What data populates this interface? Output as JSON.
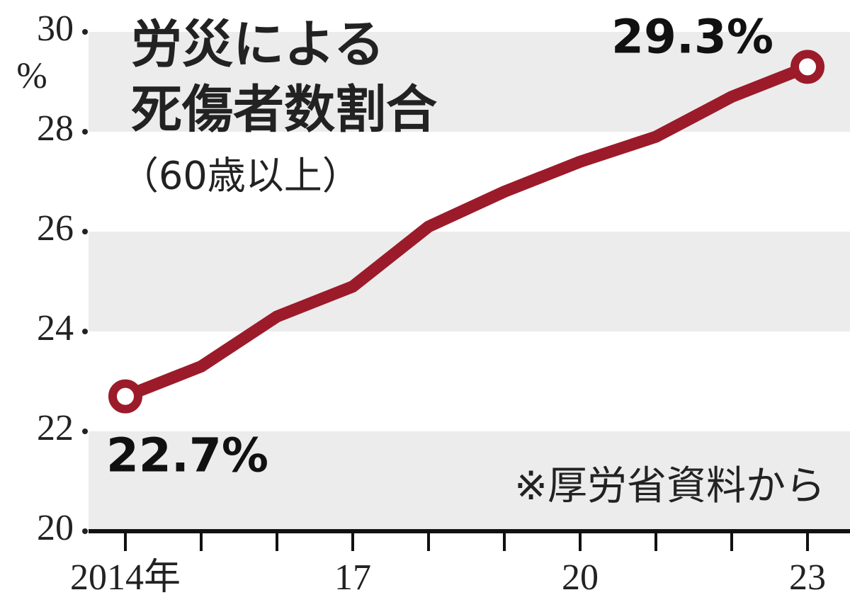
{
  "chart_data": {
    "type": "line",
    "title": [
      "労災による",
      "死傷者数割合"
    ],
    "subtitle": "（60歳以上）",
    "y_unit": "%",
    "note": "※厚労省資料から",
    "categories": [
      "2014年",
      null,
      null,
      "17",
      null,
      null,
      "20",
      null,
      null,
      "23"
    ],
    "values": [
      22.7,
      23.3,
      24.3,
      24.9,
      26.1,
      26.8,
      27.4,
      27.9,
      28.7,
      29.3
    ],
    "value_labels": [
      "22.7%",
      null,
      null,
      null,
      null,
      null,
      null,
      null,
      null,
      "29.3%"
    ],
    "color": "#9b1b2a",
    "band_color": "#ececec",
    "ylim": [
      20,
      30
    ],
    "yticks": [
      20,
      22,
      24,
      26,
      28,
      30
    ]
  }
}
